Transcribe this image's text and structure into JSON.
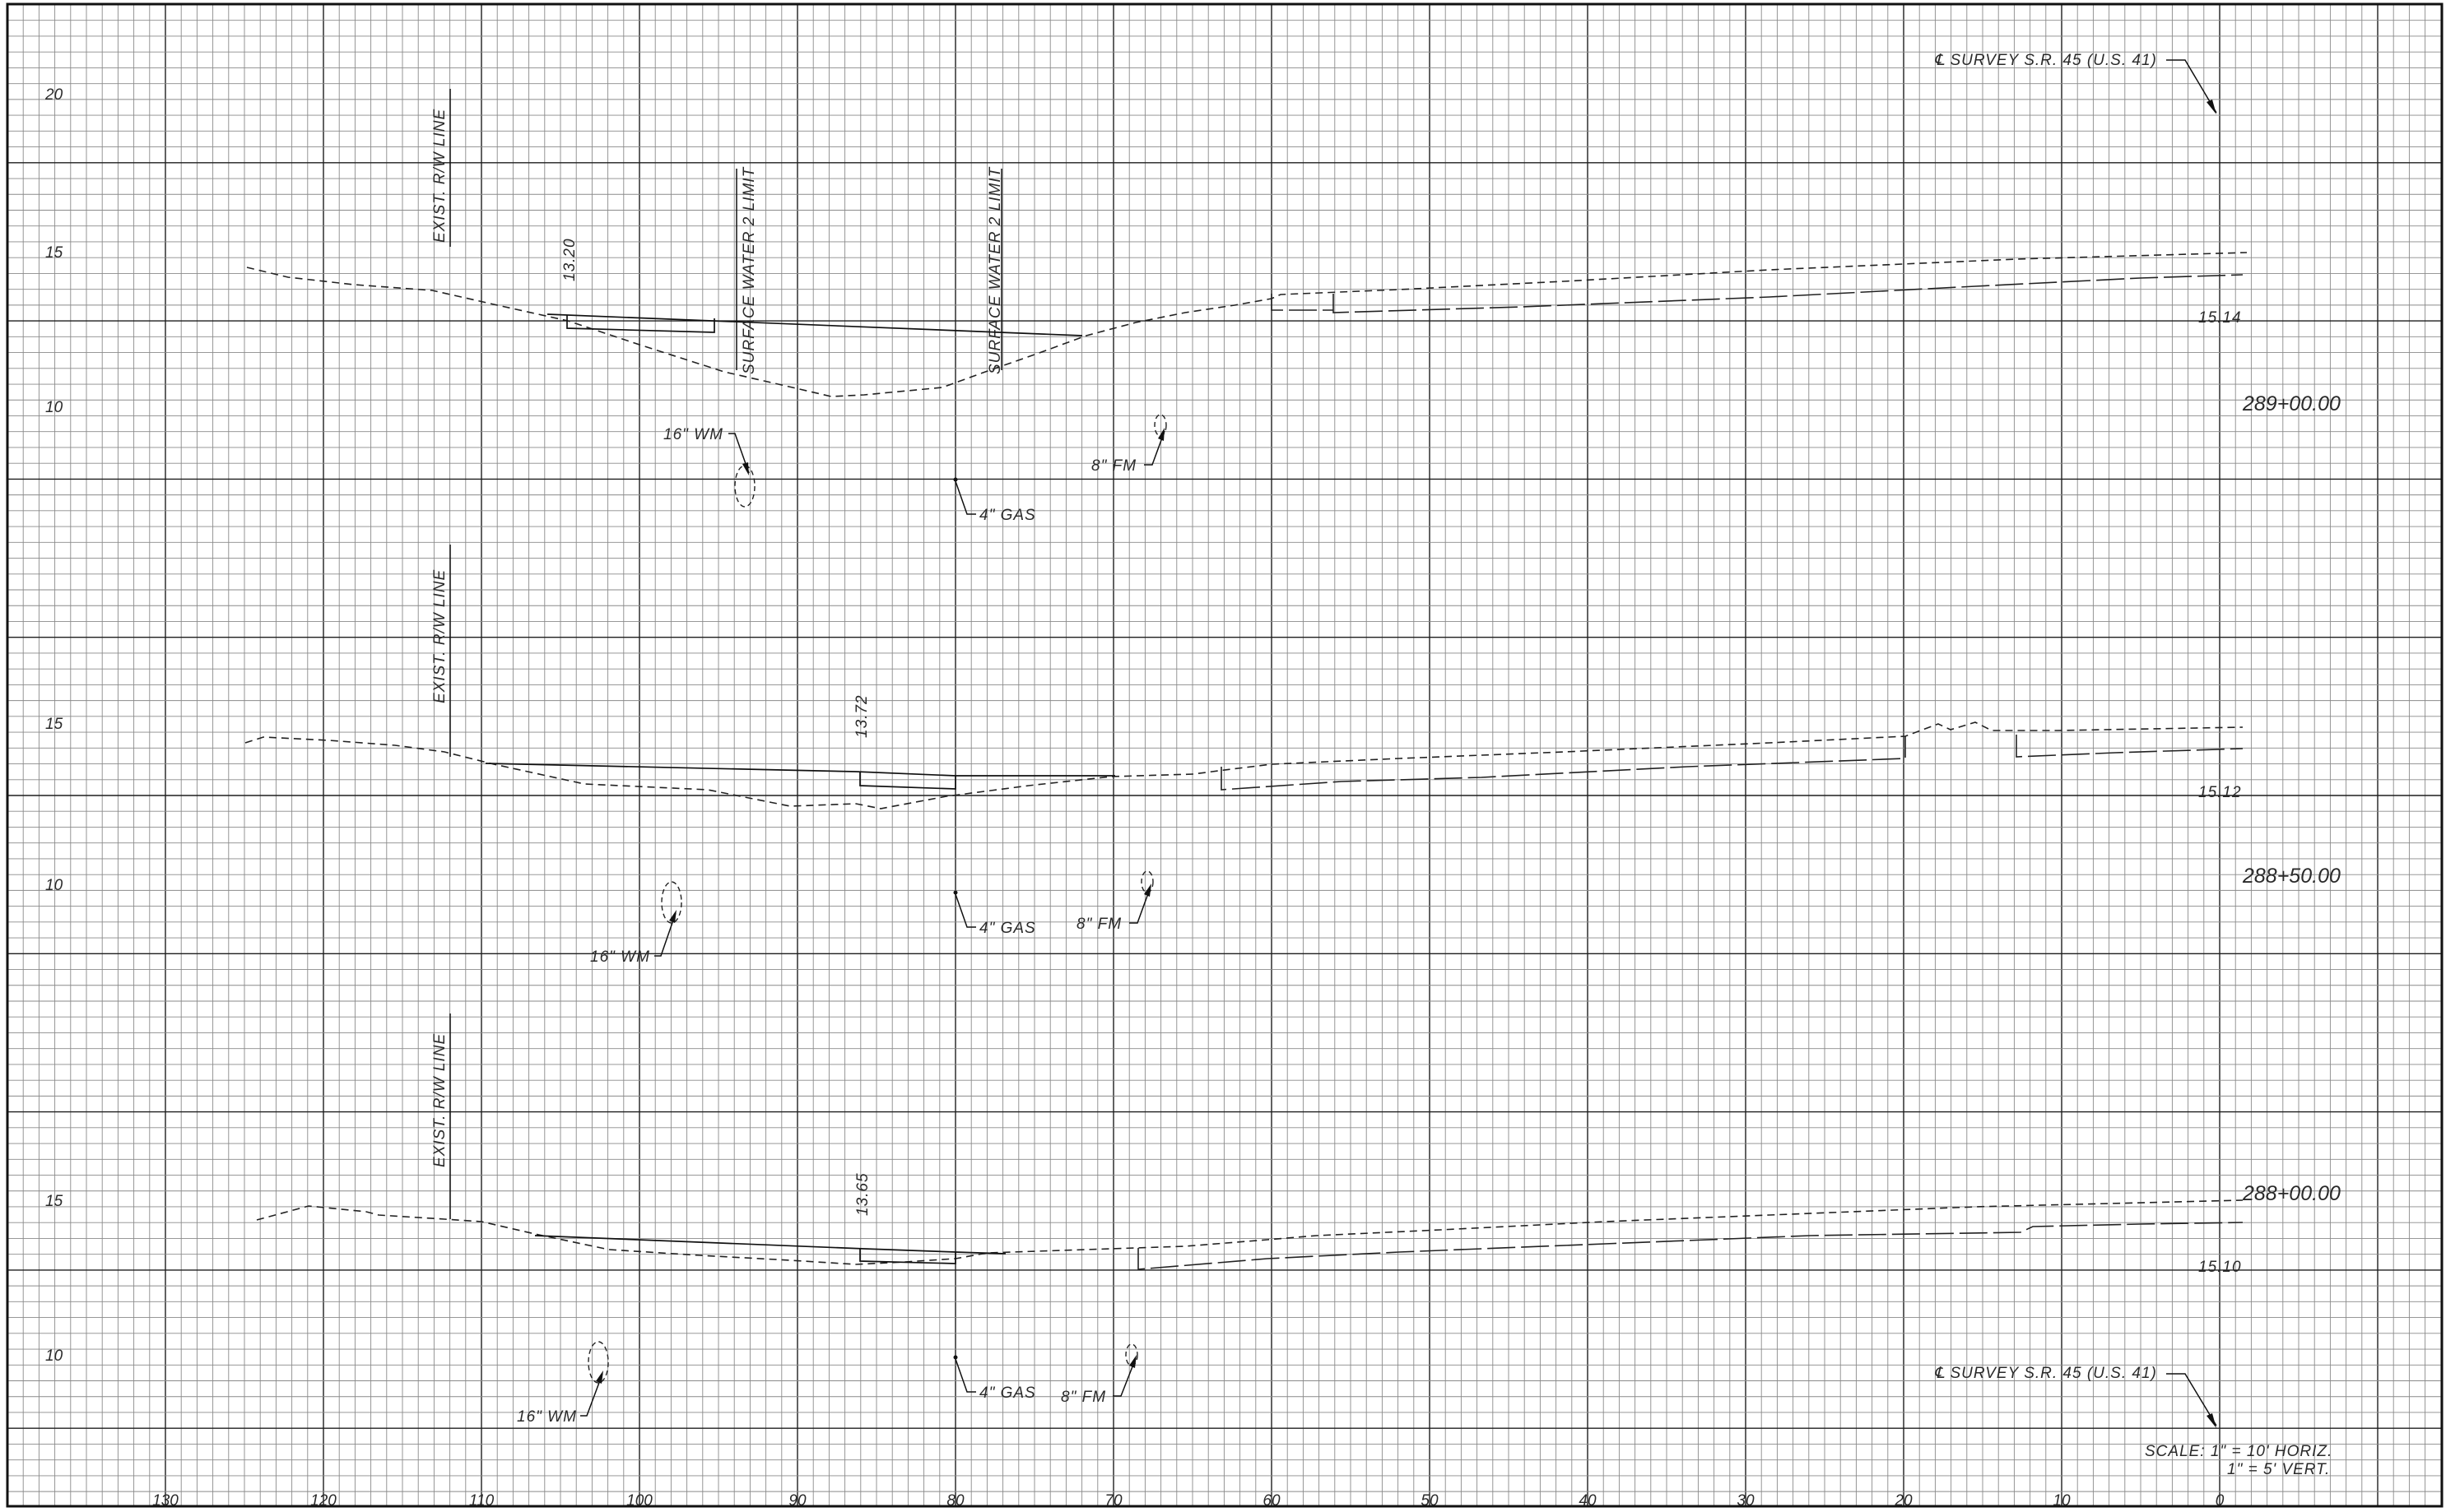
{
  "survey_label": "℄ SURVEY S.R. 45 (U.S. 41)",
  "scale": {
    "line1": "SCALE:    1\" = 10' HORIZ.",
    "line2": "1\" = 5' VERT."
  },
  "offset_ticks": [
    "130",
    "120",
    "110",
    "100",
    "90",
    "80",
    "70",
    "60",
    "50",
    "40",
    "30",
    "20",
    "10",
    "0"
  ],
  "sections": [
    {
      "station": "289+00.00",
      "center_elevation": "15.14",
      "elevation_ticks": [
        "20",
        "15",
        "10"
      ],
      "row_label": "EXIST. R/W LINE",
      "ditch_elevation": "13.20",
      "limit_label_left": "SURFACE WATER 2 LIMIT",
      "limit_label_right": "SURFACE WATER 2 LIMIT",
      "utilities": {
        "wm": "16\" WM",
        "gas": "4\" GAS",
        "fm": "8\" FM"
      }
    },
    {
      "station": "288+50.00",
      "center_elevation": "15.12",
      "elevation_ticks": [
        "15",
        "10"
      ],
      "row_label": "EXIST. R/W LINE",
      "ditch_elevation": "13.72",
      "utilities": {
        "wm": "16\" WM",
        "gas": "4\" GAS",
        "fm": "8\" FM"
      }
    },
    {
      "station": "288+00.00",
      "center_elevation": "15.10",
      "elevation_ticks": [
        "15",
        "10"
      ],
      "row_label": "EXIST. R/W LINE",
      "ditch_elevation": "13.65",
      "utilities": {
        "wm": "16\" WM",
        "gas": "4\" GAS",
        "fm": "8\" FM"
      }
    }
  ]
}
